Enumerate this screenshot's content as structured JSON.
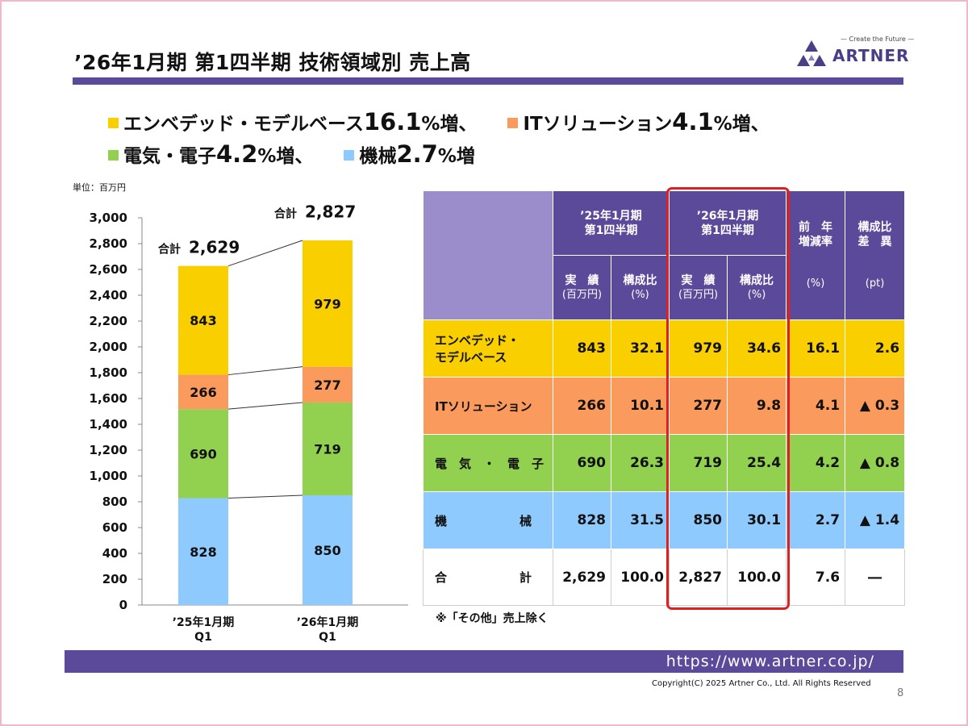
{
  "title": "’26年1月期 第1四半期 技術領域別 売上高",
  "logo": {
    "tagline": "— Create the Future —",
    "name": "ARTNER",
    "icon": "artner-triangle-logo"
  },
  "summary": {
    "line1": [
      {
        "label": "エンベデッド・モデルベース",
        "pct": "16.1",
        "suffix": "%増、",
        "color": "#f9cf00"
      },
      {
        "label": "ITソリューション",
        "pct": "4.1",
        "suffix": "%増、",
        "color": "#fa9a5c"
      }
    ],
    "line2": [
      {
        "label": "電気・電子",
        "pct": "4.2",
        "suffix": "%増、",
        "color": "#92d050"
      },
      {
        "label": "機械",
        "pct": "2.7",
        "suffix": "%増",
        "color": "#8fcaff"
      }
    ]
  },
  "unit_label": "単位：百万円",
  "chart_data": {
    "type": "bar",
    "stacked": true,
    "categories": [
      "’25年1月期\nQ1",
      "’26年1月期\nQ1"
    ],
    "series": [
      {
        "name": "機械",
        "values": [
          828,
          850
        ],
        "color": "#8fcaff"
      },
      {
        "name": "電気・電子",
        "values": [
          690,
          719
        ],
        "color": "#92d050"
      },
      {
        "name": "ITソリューション",
        "values": [
          266,
          277
        ],
        "color": "#fa9a5c"
      },
      {
        "name": "エンベデッド・モデルベース",
        "values": [
          843,
          979
        ],
        "color": "#f9cf00"
      }
    ],
    "totals": [
      2629,
      2827
    ],
    "total_label": "合計",
    "total_text": [
      "2,629",
      "2,827"
    ],
    "ylim": [
      0,
      3000
    ],
    "yticks": [
      "0",
      "200",
      "400",
      "600",
      "800",
      "1,000",
      "1,200",
      "1,400",
      "1,600",
      "1,800",
      "2,000",
      "2,200",
      "2,400",
      "2,600",
      "2,800",
      "3,000"
    ],
    "connector_lines": true
  },
  "table": {
    "period1": "’25年1月期\n第1四半期",
    "period2": "’26年1月期\n第1四半期",
    "yoy_header": "前　年\n増減率",
    "diff_header": "構成比\n差　異",
    "actual": "実　績",
    "actual_unit": "(百万円)",
    "ratio": "構成比",
    "ratio_unit": "(%)",
    "yoy_unit": "(%)",
    "diff_unit": "(pt)",
    "rows": [
      {
        "label": "エンベデッド・\nモデルベース",
        "v1": "843",
        "r1": "32.1",
        "v2": "979",
        "r2": "34.6",
        "yoy": "16.1",
        "diff": "2.6",
        "color": "#f9cf00"
      },
      {
        "label": "ITソリューション",
        "v1": "266",
        "r1": "10.1",
        "v2": "277",
        "r2": "9.8",
        "yoy": "4.1",
        "diff": "▲ 0.3",
        "color": "#fa9a5c"
      },
      {
        "label": "電　気　・　電　子",
        "v1": "690",
        "r1": "26.3",
        "v2": "719",
        "r2": "25.4",
        "yoy": "4.2",
        "diff": "▲ 0.8",
        "color": "#92d050"
      },
      {
        "label": "機　　　　　　械",
        "v1": "828",
        "r1": "31.5",
        "v2": "850",
        "r2": "30.1",
        "yoy": "2.7",
        "diff": "▲ 1.4",
        "color": "#8fcaff"
      },
      {
        "label": "合　　　　　　計",
        "v1": "2,629",
        "r1": "100.0",
        "v2": "2,827",
        "r2": "100.0",
        "yoy": "7.6",
        "diff": "―",
        "color": "#ffffff"
      }
    ],
    "note": "※「その他」売上除く"
  },
  "footer": {
    "url": "https://www.artner.co.jp/",
    "copyright": "Copyright(C) 2025 Artner Co., Ltd. All Rights Reserved",
    "page": "8"
  }
}
